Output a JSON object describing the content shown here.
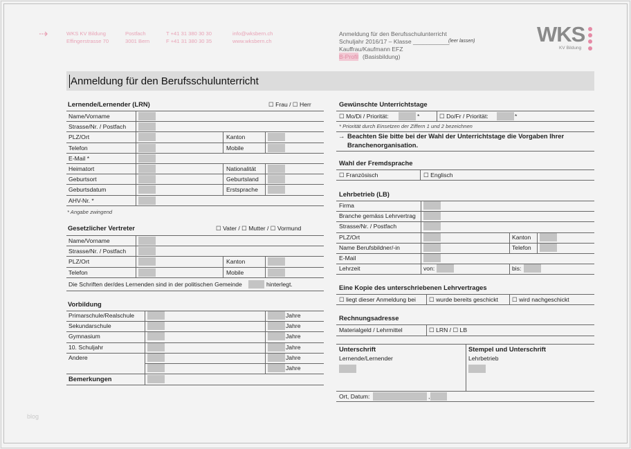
{
  "header": {
    "org": [
      "WKS KV Bildung",
      "Effingerstrasse 70"
    ],
    "postal": [
      "Postfach",
      "3001 Bern"
    ],
    "phone": [
      "T +41 31 380 30 30",
      "F +41 31 380 30 35"
    ],
    "web": [
      "info@wksbern.ch",
      "www.wksbern.ch"
    ],
    "doc_title": "Anmeldung für den Berufsschulunterricht",
    "schuljahr": "Schuljahr 2016/17 – Klasse ___________",
    "leer": "(leer lassen)",
    "beruf": "Kauffrau/Kaufmann EFZ",
    "profil": "B-Profil",
    "profil_suffix": "(Basisbildung)",
    "logo": "WKS",
    "logo_sub": "KV Bildung",
    "accent": "#e58aa5"
  },
  "title": "Anmeldung für den Berufsschulunterricht",
  "lrn": {
    "title": "Lernende/Lernender (LRN)",
    "options": "☐ Frau  /  ☐ Herr",
    "rows": [
      "Name/Vorname",
      "Strasse/Nr. / Postfach",
      "PLZ/Ort",
      "Telefon",
      "E-Mail *",
      "Heimatort",
      "Geburtsort",
      "Geburtsdatum",
      "AHV-Nr. *"
    ],
    "right": [
      "Kanton",
      "Mobile",
      "Nationalität",
      "Geburtsland",
      "Erstsprache"
    ],
    "note": "* Angabe zwingend"
  },
  "vertreter": {
    "title": "Gesetzlicher Vertreter",
    "options": "☐ Vater  /  ☐ Mutter  /  ☐ Vormund",
    "rows": [
      "Name/Vorname",
      "Strasse/Nr. / Postfach",
      "PLZ/Ort",
      "Telefon"
    ],
    "right": [
      "Kanton",
      "Mobile"
    ],
    "schriften_a": "Die Schriften der/des Lernenden sind in der politischen Gemeinde",
    "schriften_b": "hinterlegt."
  },
  "vorbildung": {
    "title": "Vorbildung",
    "rows": [
      "Primarschule/Realschule",
      "Sekundarschule",
      "Gymnasium",
      "10. Schuljahr",
      "Andere",
      ""
    ],
    "jahre": "Jahre",
    "bemerkungen": "Bemerkungen"
  },
  "tage": {
    "title": "Gewünschte Unterrichtstage",
    "mo": "☐ Mo/Di  /  Priorität:",
    "do": "☐ Do/Fr  /  Priorität:",
    "star": "*",
    "note": "* Priorität durch Einsetzen der Ziffern 1 und 2 bezeichnen",
    "arrow": "→",
    "hint1": "Beachten Sie bitte bei der Wahl der Unterrichtstage die Vorgaben Ihrer",
    "hint2": "Branchenorganisation."
  },
  "sprache": {
    "title": "Wahl der Fremdsprache",
    "fr": "☐ Französisch",
    "en": "☐ Englisch"
  },
  "lb": {
    "title": "Lehrbetrieb (LB)",
    "rows": [
      "Firma",
      "Branche gemäss Lehrvertrag",
      "Strasse/Nr. / Postfach",
      "PLZ/Ort",
      "Name Berufsbildner/-in",
      "E-Mail",
      "Lehrzeit"
    ],
    "kanton": "Kanton",
    "telefon": "Telefon",
    "von": "von:",
    "bis": "bis:"
  },
  "kopie": {
    "title": "Eine Kopie des unterschriebenen Lehrvertrages",
    "a": "☐ liegt dieser Anmeldung bei",
    "b": "☐ wurde bereits geschickt",
    "c": "☐ wird nachgeschickt"
  },
  "rechnung": {
    "title": "Rechnungsadresse",
    "label": "Materialgeld / Lehrmittel",
    "options": "☐ LRN  /  ☐ LB"
  },
  "unterschrift": {
    "title": "Unterschrift",
    "sub": "Lernende/Lernender",
    "title2": "Stempel und Unterschrift",
    "sub2": "Lehrbetrieb",
    "ort": "Ort, Datum:",
    "comma": ","
  },
  "watermark": "blog"
}
